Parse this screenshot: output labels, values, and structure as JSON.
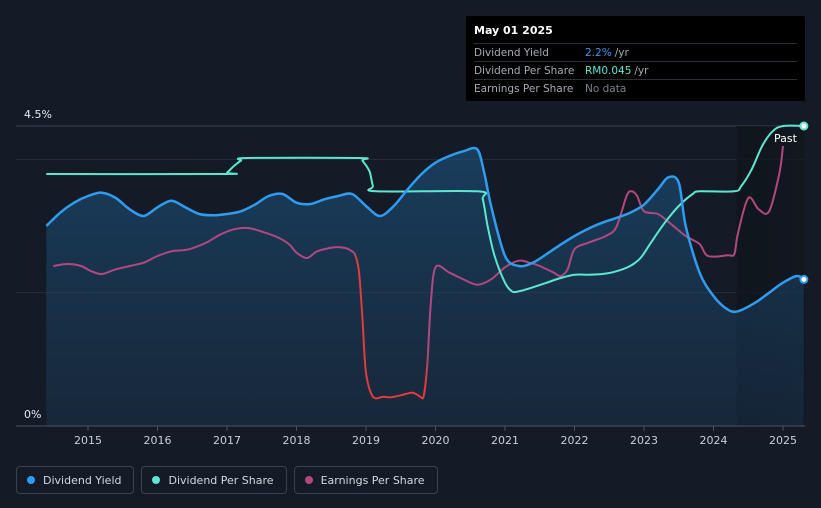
{
  "tooltip": {
    "date": "May 01 2025",
    "rows": [
      {
        "label": "Dividend Yield",
        "value": "2.2%",
        "unit": "/yr",
        "color": "#2f9cf0"
      },
      {
        "label": "Dividend Per Share",
        "value": "RM0.045",
        "unit": "/yr",
        "color": "#5ce8d0"
      },
      {
        "label": "Earnings Per Share",
        "value": "No data",
        "unit": "",
        "color": "#7d828b"
      }
    ]
  },
  "colors": {
    "yield": "#2f9cf0",
    "dps": "#5ce8d0",
    "eps": "#b1487f",
    "eps_negative": "#e03c3c",
    "background": "#151b26"
  },
  "legend": [
    {
      "label": "Dividend Yield",
      "color": "#2f9cf0"
    },
    {
      "label": "Dividend Per Share",
      "color": "#5ce8d0"
    },
    {
      "label": "Earnings Per Share",
      "color": "#b1487f"
    }
  ],
  "chart_data": {
    "type": "line",
    "y_ticks": [
      "4.5%",
      "0%"
    ],
    "ylim": [
      0,
      4.5
    ],
    "x_ticks": [
      "2015",
      "2016",
      "2017",
      "2018",
      "2019",
      "2020",
      "2021",
      "2022",
      "2023",
      "2024",
      "2025"
    ],
    "xlim": [
      2014.4,
      2025.3
    ],
    "past_label": "Past",
    "past_start": 2024.33,
    "grid": true,
    "series": [
      {
        "name": "Dividend Yield",
        "x": [
          2014.4,
          2014.6,
          2014.8,
          2015.0,
          2015.2,
          2015.4,
          2015.6,
          2015.8,
          2016.0,
          2016.2,
          2016.4,
          2016.6,
          2016.8,
          2017.0,
          2017.2,
          2017.4,
          2017.6,
          2017.8,
          2018.0,
          2018.2,
          2018.4,
          2018.6,
          2018.8,
          2019.0,
          2019.2,
          2019.4,
          2019.6,
          2019.8,
          2020.0,
          2020.2,
          2020.4,
          2020.6,
          2020.7,
          2020.8,
          2021.0,
          2021.2,
          2021.4,
          2021.6,
          2021.8,
          2022.0,
          2022.2,
          2022.4,
          2022.6,
          2022.8,
          2023.0,
          2023.2,
          2023.35,
          2023.5,
          2023.6,
          2023.8,
          2024.0,
          2024.2,
          2024.35,
          2024.6,
          2024.8,
          2025.0,
          2025.2,
          2025.3
        ],
        "values": [
          3.0,
          3.2,
          3.35,
          3.45,
          3.5,
          3.42,
          3.25,
          3.15,
          3.28,
          3.38,
          3.28,
          3.18,
          3.16,
          3.18,
          3.22,
          3.32,
          3.45,
          3.48,
          3.35,
          3.33,
          3.4,
          3.45,
          3.48,
          3.3,
          3.15,
          3.3,
          3.55,
          3.78,
          3.95,
          4.05,
          4.12,
          4.15,
          3.8,
          3.3,
          2.55,
          2.4,
          2.45,
          2.58,
          2.72,
          2.85,
          2.96,
          3.05,
          3.12,
          3.2,
          3.32,
          3.55,
          3.73,
          3.65,
          3.0,
          2.3,
          1.95,
          1.75,
          1.72,
          1.85,
          2.0,
          2.15,
          2.25,
          2.2
        ]
      },
      {
        "name": "Dividend Per Share",
        "x": [
          2014.4,
          2016.95,
          2017.0,
          2017.1,
          2017.2,
          2017.3,
          2018.9,
          2018.95,
          2019.05,
          2019.1,
          2019.15,
          2020.6,
          2020.68,
          2020.75,
          2020.85,
          2021.0,
          2021.1,
          2021.2,
          2021.4,
          2021.6,
          2021.8,
          2022.0,
          2022.2,
          2022.4,
          2022.6,
          2022.8,
          2022.95,
          2023.1,
          2023.3,
          2023.5,
          2023.7,
          2023.8,
          2024.3,
          2024.4,
          2024.55,
          2024.7,
          2024.85,
          2025.0,
          2025.3
        ],
        "values": [
          3.78,
          3.78,
          3.8,
          3.9,
          3.98,
          4.02,
          4.02,
          3.98,
          3.82,
          3.6,
          3.52,
          3.52,
          3.4,
          3.0,
          2.55,
          2.15,
          2.02,
          2.02,
          2.08,
          2.15,
          2.22,
          2.27,
          2.27,
          2.28,
          2.32,
          2.4,
          2.52,
          2.75,
          3.05,
          3.3,
          3.48,
          3.52,
          3.52,
          3.6,
          3.85,
          4.2,
          4.42,
          4.5,
          4.5
        ]
      },
      {
        "name": "Earnings Per Share",
        "x": [
          2014.5,
          2014.7,
          2014.9,
          2015.05,
          2015.2,
          2015.4,
          2015.6,
          2015.8,
          2016.0,
          2016.2,
          2016.45,
          2016.7,
          2016.9,
          2017.1,
          2017.3,
          2017.55,
          2017.75,
          2017.9,
          2018.0,
          2018.15,
          2018.3,
          2018.55,
          2018.7,
          2018.8,
          2018.85,
          2018.9,
          2018.95,
          2019.0,
          2019.1,
          2019.25,
          2019.35,
          2019.5,
          2019.65,
          2019.72,
          2019.78,
          2019.83,
          2019.88,
          2019.93,
          2020.0,
          2020.2,
          2020.4,
          2020.6,
          2020.8,
          2021.0,
          2021.2,
          2021.35,
          2021.5,
          2021.7,
          2021.8,
          2021.9,
          2022.0,
          2022.2,
          2022.45,
          2022.6,
          2022.75,
          2022.82,
          2022.9,
          2023.0,
          2023.2,
          2023.4,
          2023.6,
          2023.8,
          2023.92,
          2024.2,
          2024.3,
          2024.35,
          2024.5,
          2024.65,
          2024.8,
          2024.95,
          2025.0
        ],
        "values": [
          2.4,
          2.43,
          2.4,
          2.32,
          2.28,
          2.35,
          2.4,
          2.45,
          2.55,
          2.62,
          2.65,
          2.75,
          2.87,
          2.95,
          2.97,
          2.9,
          2.82,
          2.72,
          2.6,
          2.52,
          2.62,
          2.68,
          2.67,
          2.62,
          2.55,
          2.3,
          1.6,
          0.8,
          0.44,
          0.44,
          0.43,
          0.46,
          0.5,
          0.48,
          0.44,
          0.45,
          0.9,
          1.8,
          2.38,
          2.3,
          2.2,
          2.12,
          2.2,
          2.38,
          2.48,
          2.45,
          2.4,
          2.3,
          2.25,
          2.35,
          2.65,
          2.75,
          2.85,
          2.98,
          3.45,
          3.52,
          3.45,
          3.22,
          3.18,
          3.02,
          2.85,
          2.73,
          2.55,
          2.56,
          2.58,
          2.88,
          3.42,
          3.25,
          3.22,
          3.8,
          4.2
        ]
      }
    ],
    "eps_negative_range": [
      2018.85,
      2019.88
    ]
  }
}
